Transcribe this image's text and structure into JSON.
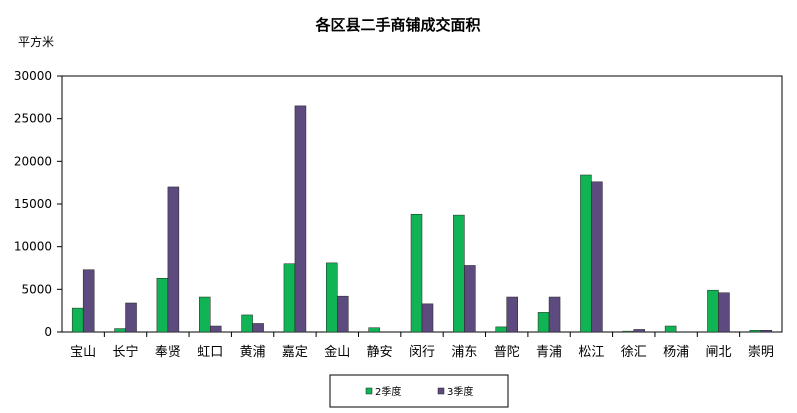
{
  "chart_data": {
    "type": "bar",
    "title": "各区县二手商铺成交面积",
    "ylabel": "平方米",
    "xlabel": "",
    "ylim": [
      0,
      30000
    ],
    "yticks": [
      0,
      5000,
      10000,
      15000,
      20000,
      25000,
      30000
    ],
    "grid": false,
    "legend_position": "bottom",
    "categories": [
      "宝山",
      "长宁",
      "奉贤",
      "虹口",
      "黄浦",
      "嘉定",
      "金山",
      "静安",
      "闵行",
      "浦东",
      "普陀",
      "青浦",
      "松江",
      "徐汇",
      "杨浦",
      "闸北",
      "崇明"
    ],
    "series": [
      {
        "name": "2季度",
        "color": "#11b454",
        "values": [
          2800,
          400,
          6300,
          4100,
          2000,
          8000,
          8100,
          500,
          13800,
          13700,
          600,
          2300,
          18400,
          100,
          700,
          4900,
          200
        ]
      },
      {
        "name": "3季度",
        "color": "#5d4a7e",
        "values": [
          7300,
          3400,
          17000,
          700,
          1000,
          26500,
          4200,
          0,
          3300,
          7800,
          4100,
          4100,
          17600,
          300,
          0,
          4600,
          200
        ]
      }
    ]
  }
}
